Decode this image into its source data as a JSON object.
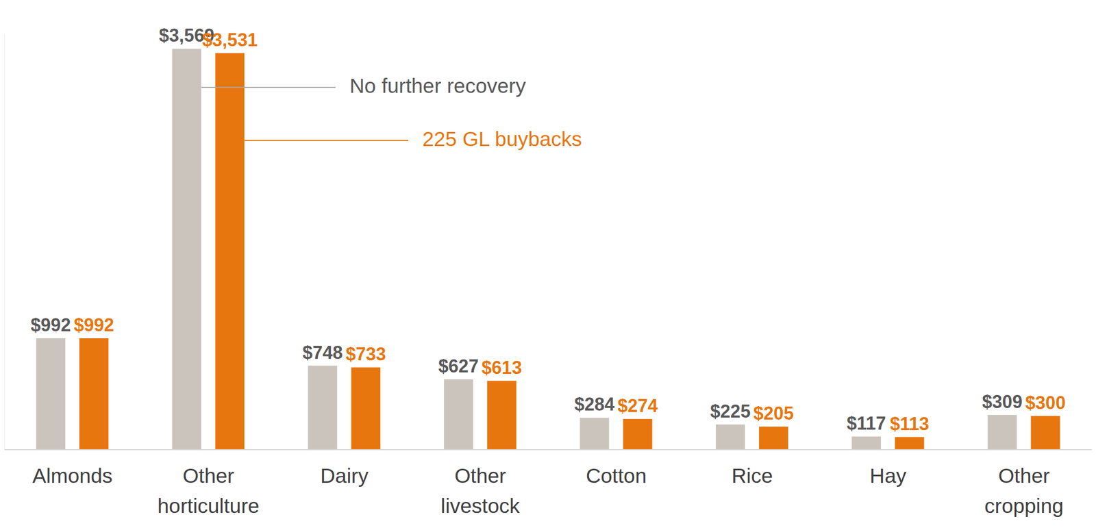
{
  "chart_data": {
    "type": "bar",
    "categories": [
      "Almonds",
      "Other horticulture",
      "Dairy",
      "Other livestock",
      "Cotton",
      "Rice",
      "Hay",
      "Other cropping"
    ],
    "series": [
      {
        "name": "No further recovery",
        "color": "#cbc4bd",
        "values": [
          992,
          3569,
          748,
          627,
          284,
          225,
          117,
          309
        ],
        "value_labels": [
          "$992",
          "$3,569",
          "$748",
          "$627",
          "$284",
          "$225",
          "$117",
          "$309"
        ]
      },
      {
        "name": "225 GL buybacks",
        "color": "#e8760e",
        "values": [
          992,
          3531,
          733,
          613,
          274,
          205,
          113,
          300
        ],
        "value_labels": [
          "$992",
          "$3,531",
          "$733",
          "$613",
          "$274",
          "$205",
          "$113",
          "$300"
        ]
      }
    ],
    "ylim": [
      0,
      3700
    ],
    "yticks": [],
    "data_labels": true,
    "grid": false,
    "tick_labels": "x"
  }
}
